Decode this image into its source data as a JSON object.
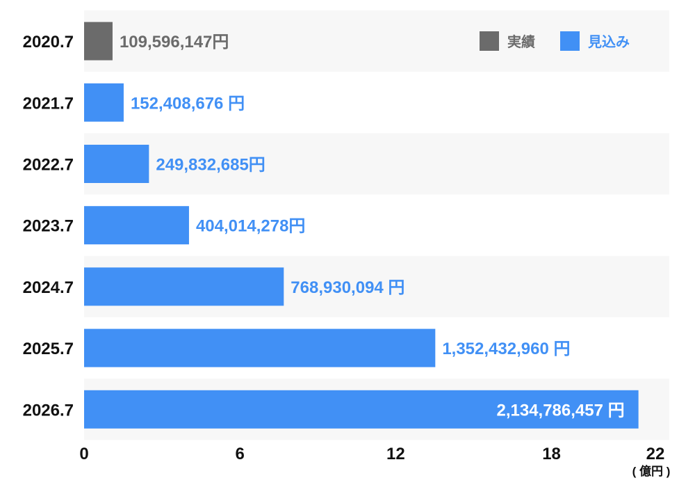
{
  "chart_data": {
    "type": "bar",
    "orientation": "horizontal",
    "categories": [
      "2020.7",
      "2021.7",
      "2022.7",
      "2023.7",
      "2024.7",
      "2025.7",
      "2026.7"
    ],
    "values": [
      109596147,
      152408676,
      249832685,
      404014278,
      768930094,
      1352432960,
      2134786457
    ],
    "value_labels": [
      "109,596,147円",
      "152,408,676 円",
      "249,832,685円",
      "404,014,278円",
      "768,930,094 円",
      "1,352,432,960 円",
      "2,134,786,457 円"
    ],
    "bar_types": [
      "actual",
      "forecast",
      "forecast",
      "forecast",
      "forecast",
      "forecast",
      "forecast"
    ],
    "xlim": [
      0,
      22
    ],
    "xticks": [
      "0",
      "6",
      "12",
      "18",
      "22"
    ],
    "xunit": "( 億円 )",
    "legend": [
      {
        "name": "実績",
        "color": "#6b6b6b"
      },
      {
        "name": "見込み",
        "color": "#4190f5"
      }
    ],
    "legend_position": "top-right",
    "colors": {
      "actual": "#6b6b6b",
      "forecast": "#4190f5",
      "row_alt": "#f7f7f7"
    }
  }
}
